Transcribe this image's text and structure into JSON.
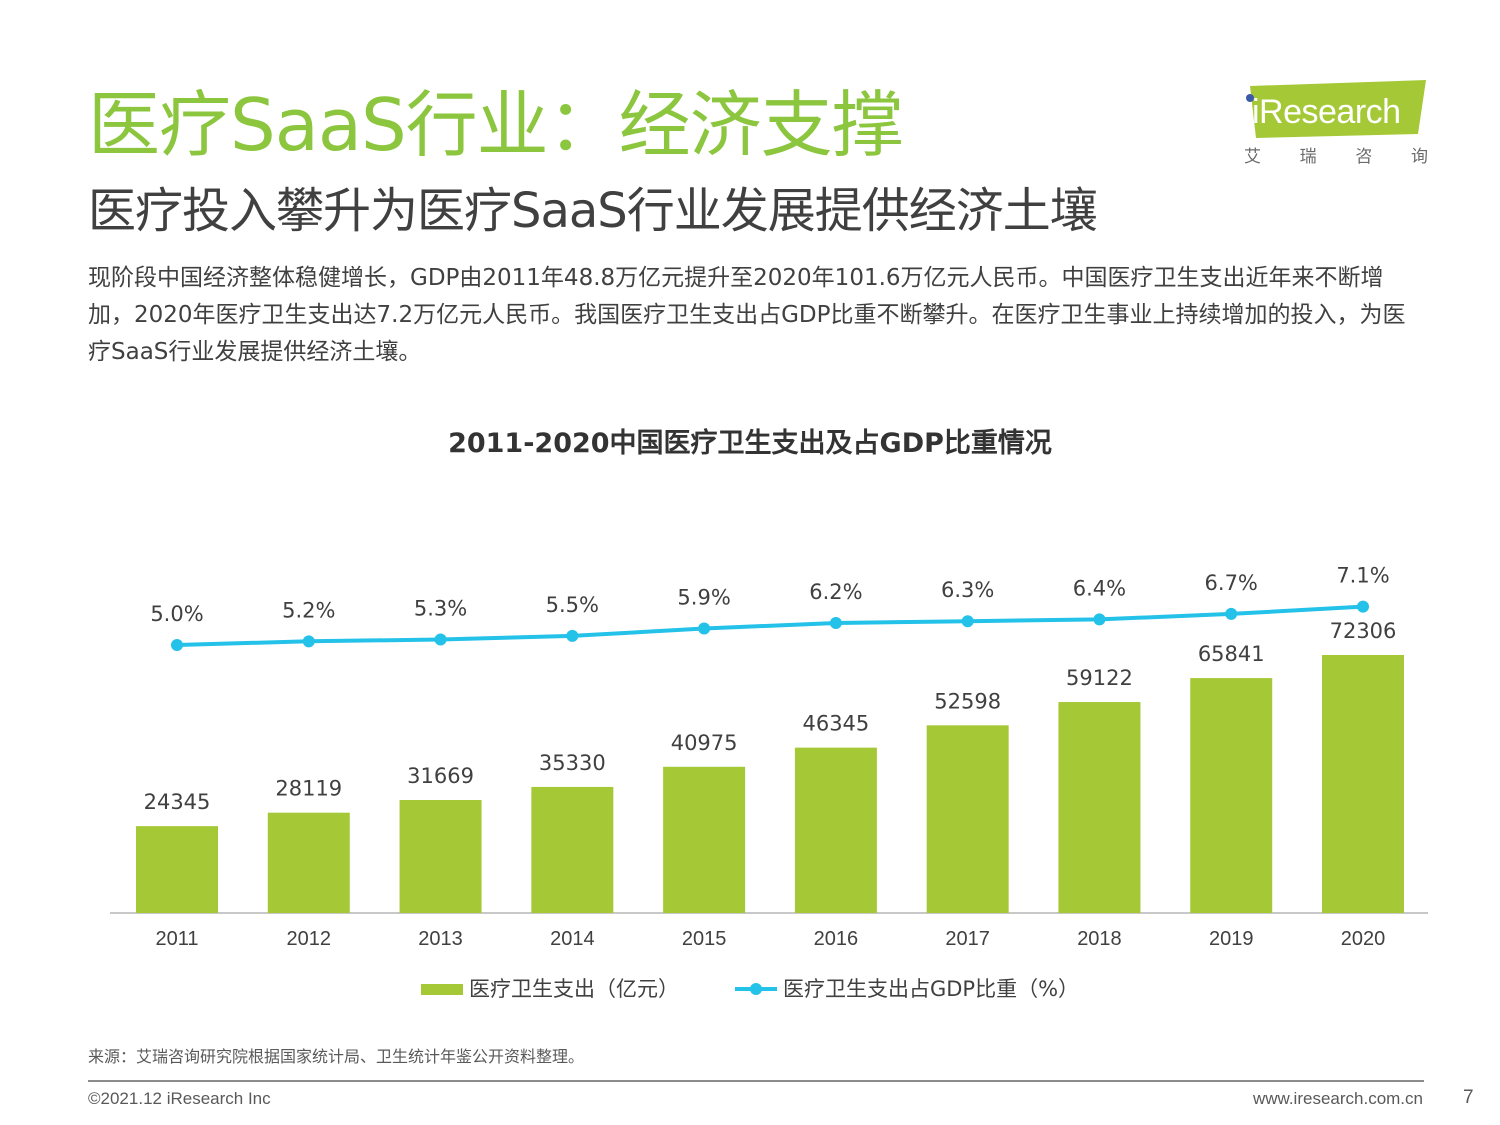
{
  "header": {
    "title": "医疗SaaS行业：经济支撑",
    "subtitle": "医疗投入攀升为医疗SaaS行业发展提供经济土壤",
    "description": "现阶段中国经济整体稳健增长，GDP由2011年48.8万亿元提升至2020年101.6万亿元人民币。中国医疗卫生支出近年来不断增加，2020年医疗卫生支出达7.2万亿元人民币。我国医疗卫生支出占GDP比重不断攀升。在医疗卫生事业上持续增加的投入，为医疗SaaS行业发展提供经济土壤。"
  },
  "logo": {
    "text": "iResearch",
    "cn_chars": [
      "艾",
      "瑞",
      "咨",
      "询"
    ]
  },
  "chart_data": {
    "type": "bar",
    "title": "2011-2020中国医疗卫生支出及占GDP比重情况",
    "categories": [
      "2011",
      "2012",
      "2013",
      "2014",
      "2015",
      "2016",
      "2017",
      "2018",
      "2019",
      "2020"
    ],
    "series": [
      {
        "name": "医疗卫生支出（亿元）",
        "type": "bar",
        "color": "#a5c936",
        "values": [
          24345,
          28119,
          31669,
          35330,
          40975,
          46345,
          52598,
          59122,
          65841,
          72306
        ],
        "labels": [
          "24345",
          "28119",
          "31669",
          "35330",
          "40975",
          "46345",
          "52598",
          "59122",
          "65841",
          "72306"
        ]
      },
      {
        "name": "医疗卫生支出占GDP比重（%）",
        "type": "line",
        "color": "#24c1e8",
        "values": [
          5.0,
          5.2,
          5.3,
          5.5,
          5.9,
          6.2,
          6.3,
          6.4,
          6.7,
          7.1
        ],
        "labels": [
          "5.0%",
          "5.2%",
          "5.3%",
          "5.5%",
          "5.9%",
          "6.2%",
          "6.3%",
          "6.4%",
          "6.7%",
          "7.1%"
        ]
      }
    ],
    "legend_position": "bottom",
    "grid": false
  },
  "footer": {
    "source": "来源：艾瑞咨询研究院根据国家统计局、卫生统计年鉴公开资料整理。",
    "copyright": "©2021.12 iResearch Inc",
    "website": "www.iresearch.com.cn",
    "page": "7"
  }
}
